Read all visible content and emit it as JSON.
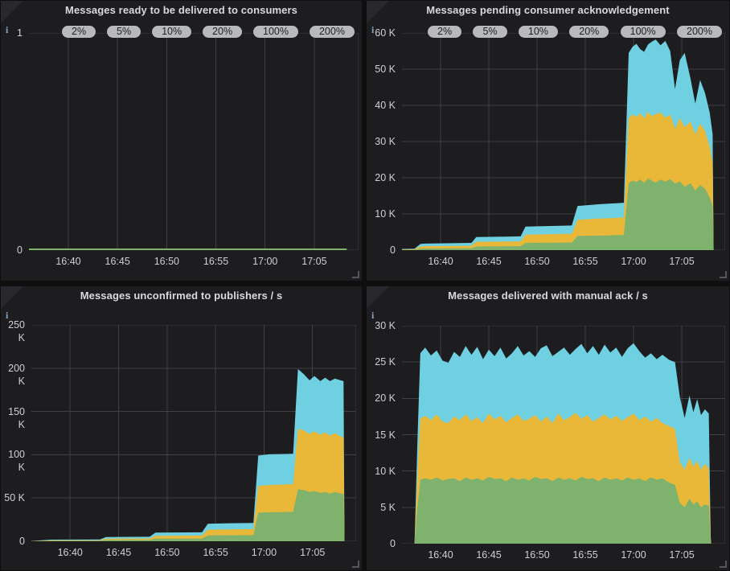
{
  "colors": {
    "page_background": "#0f0f10",
    "panel_background": "#1d1d1f",
    "grid": "#3e4044",
    "axis_text": "#cfd0d2",
    "title_text": "#d8d9da",
    "badge_bg": "#b7b9bb",
    "badge_text": "#212225",
    "green": "#7EB26D",
    "yellow": "#EAB839",
    "cyan": "#6ED0E0"
  },
  "panels": [
    {
      "title": "Messages ready to be delivered to consumers",
      "info_glyph": "i",
      "badges": [
        "2%",
        "5%",
        "10%",
        "20%",
        "100%",
        "200%"
      ],
      "y_ticks": [
        "1",
        "0"
      ],
      "x_ticks": [
        "16:40",
        "16:45",
        "16:50",
        "16:55",
        "17:00",
        "17:05"
      ]
    },
    {
      "title": "Messages pending consumer acknowledgement",
      "info_glyph": "i",
      "badges": [
        "2%",
        "5%",
        "10%",
        "20%",
        "100%",
        "200%"
      ],
      "y_ticks": [
        "60 K",
        "50 K",
        "40 K",
        "30 K",
        "20 K",
        "10 K",
        "0"
      ],
      "x_ticks": [
        "16:40",
        "16:45",
        "16:50",
        "16:55",
        "17:00",
        "17:05"
      ]
    },
    {
      "title": "Messages unconfirmed to publishers / s",
      "info_glyph": "i",
      "badges": [],
      "y_ticks": [
        "250 K",
        "200 K",
        "150 K",
        "100 K",
        "50 K",
        "0"
      ],
      "x_ticks": [
        "16:40",
        "16:45",
        "16:50",
        "16:55",
        "17:00",
        "17:05"
      ]
    },
    {
      "title": "Messages delivered with manual ack / s",
      "info_glyph": "i",
      "badges": [],
      "y_ticks": [
        "30 K",
        "25 K",
        "20 K",
        "15 K",
        "10 K",
        "5 K",
        "0"
      ],
      "x_ticks": [
        "16:40",
        "16:45",
        "16:50",
        "16:55",
        "17:00",
        "17:05"
      ]
    }
  ],
  "chart_data": [
    {
      "type": "line",
      "title": "Messages ready to be delivered to consumers",
      "x_unit": "minutes after 16:00",
      "x_domain_minutes": [
        36,
        69.5
      ],
      "x_tick_minutes": [
        40,
        45,
        50,
        55,
        60,
        65
      ],
      "x_tick_labels": [
        "16:40",
        "16:45",
        "16:50",
        "16:55",
        "17:00",
        "17:05"
      ],
      "ymax": 1,
      "ylim": [
        0,
        1
      ],
      "grid": true,
      "series_color": "green",
      "points": [
        [
          36,
          0
        ],
        [
          68.3,
          0
        ]
      ]
    },
    {
      "type": "area",
      "stacked": true,
      "title": "Messages pending consumer acknowledgement",
      "x_unit": "minutes after 16:00",
      "x_domain_minutes": [
        36,
        69.5
      ],
      "x_tick_minutes": [
        40,
        45,
        50,
        55,
        60,
        65
      ],
      "x_tick_labels": [
        "16:40",
        "16:45",
        "16:50",
        "16:55",
        "17:00",
        "17:05"
      ],
      "ymax": 60,
      "ylim_thousands": [
        0,
        60
      ],
      "grid": true,
      "values_are_cumulative_thousands": true,
      "series_order_bottom_to_top": [
        "green",
        "yellow",
        "cyan"
      ],
      "points": [
        [
          36,
          0.1,
          0.2,
          0.3
        ],
        [
          37.3,
          0.1,
          0.25,
          0.4
        ],
        [
          37.9,
          0.4,
          1.0,
          1.7
        ],
        [
          38.4,
          0.45,
          1.1,
          1.8
        ],
        [
          43.2,
          0.5,
          1.2,
          2.0
        ],
        [
          43.7,
          1.0,
          2.3,
          3.6
        ],
        [
          48.3,
          1.1,
          2.4,
          3.8
        ],
        [
          48.8,
          2.0,
          4.3,
          6.5
        ],
        [
          53.6,
          2.1,
          4.5,
          6.8
        ],
        [
          54.2,
          3.9,
          8.4,
          12.2
        ],
        [
          56.5,
          4.0,
          8.7,
          12.7
        ],
        [
          59.0,
          4.2,
          9.0,
          13.1
        ],
        [
          59.5,
          18.5,
          36.5,
          54.5
        ],
        [
          59.9,
          19.2,
          37.5,
          56.2
        ],
        [
          60.3,
          18.8,
          36.8,
          57.0
        ],
        [
          60.7,
          19.5,
          37.8,
          55.5
        ],
        [
          61.1,
          18.6,
          36.4,
          54.8
        ],
        [
          61.5,
          19.8,
          38.2,
          56.8
        ],
        [
          61.9,
          19.2,
          37.0,
          57.6
        ],
        [
          62.3,
          18.7,
          37.6,
          58.2
        ],
        [
          62.8,
          19.5,
          38.0,
          56.6
        ],
        [
          63.3,
          18.9,
          36.6,
          57.8
        ],
        [
          63.8,
          19.6,
          37.4,
          55.0
        ],
        [
          64.3,
          18.4,
          33.5,
          44.5
        ],
        [
          64.8,
          19.0,
          36.5,
          52.5
        ],
        [
          65.3,
          17.5,
          34.0,
          54.5
        ],
        [
          65.9,
          18.5,
          35.5,
          47.5
        ],
        [
          66.4,
          16.5,
          32.0,
          40.5
        ],
        [
          66.9,
          18.0,
          35.0,
          47.0
        ],
        [
          67.4,
          17.0,
          33.0,
          43.5
        ],
        [
          67.9,
          14.5,
          28.5,
          38.0
        ],
        [
          68.2,
          12,
          24,
          32
        ],
        [
          68.3,
          0,
          0,
          0
        ]
      ]
    },
    {
      "type": "area",
      "stacked": true,
      "title": "Messages unconfirmed to publishers / s",
      "x_unit": "minutes after 16:00",
      "x_domain_minutes": [
        36,
        69.5
      ],
      "x_tick_minutes": [
        40,
        45,
        50,
        55,
        60,
        65
      ],
      "x_tick_labels": [
        "16:40",
        "16:45",
        "16:50",
        "16:55",
        "17:00",
        "17:05"
      ],
      "ymax": 250,
      "ylim_thousands": [
        0,
        250
      ],
      "grid": true,
      "values_are_cumulative_thousands": true,
      "series_order_bottom_to_top": [
        "green",
        "yellow",
        "cyan"
      ],
      "points": [
        [
          36,
          0.05,
          0.1,
          0.2
        ],
        [
          37.0,
          0.3,
          0.6,
          1.0
        ],
        [
          38.0,
          0.55,
          1.1,
          1.9
        ],
        [
          43.1,
          0.6,
          1.2,
          2.1
        ],
        [
          43.7,
          1.5,
          3.0,
          4.9
        ],
        [
          48.2,
          1.6,
          3.2,
          5.2
        ],
        [
          48.8,
          3.0,
          6.3,
          9.9
        ],
        [
          53.6,
          3.1,
          6.6,
          10.3
        ],
        [
          54.2,
          6.8,
          13.4,
          20.3
        ],
        [
          56.5,
          7.0,
          13.8,
          20.8
        ],
        [
          58.9,
          7.1,
          14.0,
          21.2
        ],
        [
          59.4,
          33,
          64,
          99
        ],
        [
          60.5,
          33.5,
          65,
          100.5
        ],
        [
          63.0,
          34,
          66,
          101
        ],
        [
          63.5,
          60,
          130,
          199
        ],
        [
          64.1,
          59,
          128,
          193
        ],
        [
          64.7,
          57,
          124,
          186
        ],
        [
          65.2,
          58,
          127,
          191
        ],
        [
          65.8,
          56,
          123,
          185
        ],
        [
          66.3,
          57,
          126,
          189
        ],
        [
          66.8,
          55,
          122,
          185
        ],
        [
          67.3,
          57,
          125,
          188
        ],
        [
          67.9,
          55,
          121,
          186
        ],
        [
          68.2,
          55,
          120,
          185
        ],
        [
          68.3,
          0,
          0,
          0
        ]
      ]
    },
    {
      "type": "area",
      "stacked": true,
      "title": "Messages delivered with manual ack / s",
      "x_unit": "minutes after 16:00",
      "x_domain_minutes": [
        36,
        69.5
      ],
      "x_tick_minutes": [
        40,
        45,
        50,
        55,
        60,
        65
      ],
      "x_tick_labels": [
        "16:40",
        "16:45",
        "16:50",
        "16:55",
        "17:00",
        "17:05"
      ],
      "ymax": 30,
      "ylim_thousands": [
        0,
        30
      ],
      "grid": true,
      "values_are_cumulative_thousands": true,
      "series_order_bottom_to_top": [
        "green",
        "yellow",
        "cyan"
      ],
      "points": [
        [
          36,
          0,
          0,
          0
        ],
        [
          37.3,
          0,
          0,
          0
        ],
        [
          37.6,
          5,
          9.5,
          14
        ],
        [
          37.9,
          8.8,
          17.2,
          26.2
        ],
        [
          38.4,
          9.0,
          17.6,
          27.0
        ],
        [
          39.0,
          8.8,
          17.0,
          25.9
        ],
        [
          39.6,
          9.1,
          17.8,
          26.6
        ],
        [
          40.2,
          8.7,
          16.8,
          25.2
        ],
        [
          40.8,
          8.9,
          16.6,
          24.9
        ],
        [
          41.4,
          9.0,
          17.5,
          26.4
        ],
        [
          42.0,
          8.6,
          17.0,
          25.7
        ],
        [
          42.6,
          9.1,
          17.8,
          27.2
        ],
        [
          43.2,
          8.8,
          16.9,
          26.0
        ],
        [
          43.8,
          9.0,
          17.4,
          27.1
        ],
        [
          44.4,
          8.7,
          16.6,
          25.4
        ],
        [
          45.0,
          9.2,
          17.9,
          26.7
        ],
        [
          45.6,
          8.9,
          17.1,
          25.8
        ],
        [
          46.2,
          9.0,
          17.6,
          27.0
        ],
        [
          46.8,
          8.6,
          16.7,
          25.5
        ],
        [
          47.4,
          9.1,
          17.3,
          26.2
        ],
        [
          48.0,
          8.8,
          17.8,
          27.2
        ],
        [
          48.6,
          9.0,
          16.9,
          25.9
        ],
        [
          49.2,
          8.7,
          17.2,
          26.5
        ],
        [
          49.8,
          9.2,
          17.7,
          25.7
        ],
        [
          50.4,
          8.9,
          16.8,
          26.9
        ],
        [
          51.0,
          9.0,
          17.5,
          27.3
        ],
        [
          51.6,
          8.6,
          16.6,
          25.8
        ],
        [
          52.2,
          9.1,
          17.9,
          26.4
        ],
        [
          52.8,
          8.8,
          17.0,
          27.0
        ],
        [
          53.4,
          9.0,
          17.4,
          26.0
        ],
        [
          54.0,
          8.7,
          18.0,
          26.8
        ],
        [
          54.6,
          9.2,
          17.2,
          27.5
        ],
        [
          55.2,
          8.9,
          17.7,
          26.2
        ],
        [
          55.8,
          9.0,
          16.8,
          27.2
        ],
        [
          56.4,
          8.6,
          17.3,
          26.0
        ],
        [
          57.0,
          9.1,
          17.8,
          27.4
        ],
        [
          57.6,
          8.8,
          17.1,
          26.3
        ],
        [
          58.2,
          9.0,
          17.6,
          27.0
        ],
        [
          58.8,
          8.7,
          16.9,
          25.7
        ],
        [
          59.4,
          9.1,
          17.4,
          26.9
        ],
        [
          60.0,
          8.8,
          17.9,
          27.6
        ],
        [
          60.6,
          9.0,
          17.0,
          26.5
        ],
        [
          61.2,
          8.6,
          17.5,
          25.6
        ],
        [
          61.8,
          9.1,
          16.8,
          26.2
        ],
        [
          62.4,
          8.8,
          17.3,
          25.4
        ],
        [
          63.0,
          9.0,
          16.6,
          26.0
        ],
        [
          63.7,
          8.4,
          16.2,
          25.3
        ],
        [
          64.3,
          8.1,
          15.8,
          25.0
        ],
        [
          64.8,
          5.6,
          11.2,
          20.2
        ],
        [
          65.3,
          5.0,
          10.2,
          17.3
        ],
        [
          65.8,
          6.2,
          11.8,
          20.4
        ],
        [
          66.2,
          5.4,
          10.6,
          18.1
        ],
        [
          66.6,
          5.8,
          11.4,
          19.9
        ],
        [
          67.0,
          5.0,
          10.2,
          17.7
        ],
        [
          67.4,
          5.4,
          11.0,
          18.5
        ],
        [
          67.8,
          5.2,
          10.4,
          17.9
        ],
        [
          68.0,
          0,
          0.5,
          1
        ],
        [
          68.05,
          0,
          0,
          0
        ]
      ]
    }
  ]
}
